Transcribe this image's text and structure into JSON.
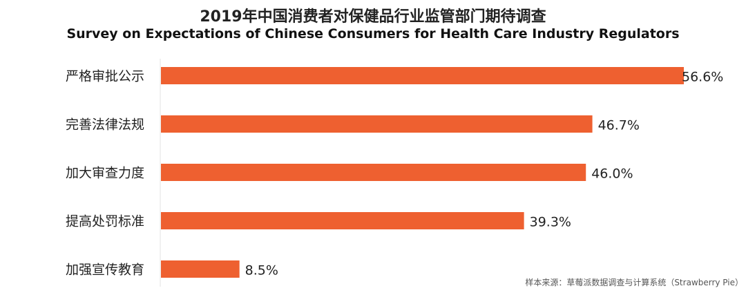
{
  "chart_data": {
    "type": "bar",
    "orientation": "horizontal",
    "title": "2019年中国消费者对保健品行业监管部门期待调查",
    "subtitle": "Survey on Expectations of Chinese Consumers for Health Care Industry Regulators",
    "categories": [
      "严格审批公示",
      "完善法律法规",
      "加大审查力度",
      "提高处罚标准",
      "加强宣传教育"
    ],
    "values": [
      56.6,
      46.7,
      46.0,
      39.3,
      8.5
    ],
    "data_labels": [
      "56.6%",
      "46.7%",
      "46.0%",
      "39.3%",
      "8.5%"
    ],
    "xlim": [
      0,
      56.6
    ],
    "grid": false,
    "legend": "none",
    "bar_color": "#EE6030"
  },
  "source": "样本来源：草莓派数据调查与计算系统（Strawberry Pie）"
}
